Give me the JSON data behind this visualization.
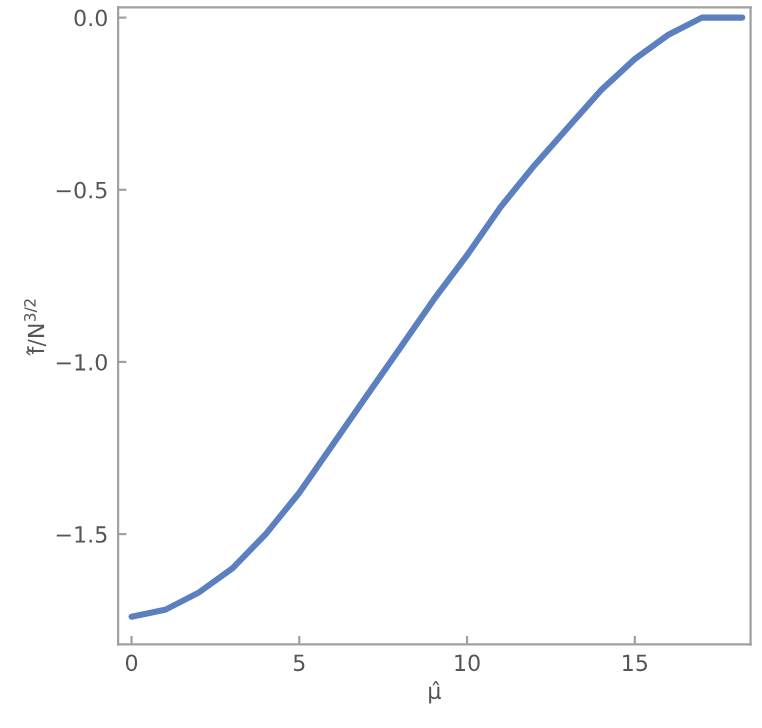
{
  "chart_data": {
    "type": "line",
    "xlabel": "μ̂",
    "ylabel": "f̂/N$^{3/2}$",
    "x": [
      0,
      1,
      2,
      3,
      4,
      5,
      6,
      7,
      8,
      9,
      10,
      11,
      12,
      13,
      14,
      15,
      16,
      17,
      17.5,
      18.2
    ],
    "series": [
      {
        "color": "#5b7fbf",
        "values": [
          -1.74,
          -1.72,
          -1.67,
          -1.6,
          -1.5,
          -1.38,
          -1.24,
          -1.1,
          -0.96,
          -0.82,
          -0.69,
          -0.55,
          -0.43,
          -0.32,
          -0.21,
          -0.12,
          -0.05,
          0.0,
          0.0,
          0.0
        ]
      }
    ],
    "xlim": [
      -0.4,
      18.45
    ],
    "ylim": [
      -1.82,
      0.03
    ],
    "xticks": [
      0,
      5,
      10,
      15
    ],
    "yticks": [
      {
        "value": 0,
        "label": "0.0"
      },
      {
        "value": -0.5,
        "label": "−0.5"
      },
      {
        "value": -1.0,
        "label": "−1.0"
      },
      {
        "value": -1.5,
        "label": "−1.5"
      }
    ],
    "grid": false
  }
}
